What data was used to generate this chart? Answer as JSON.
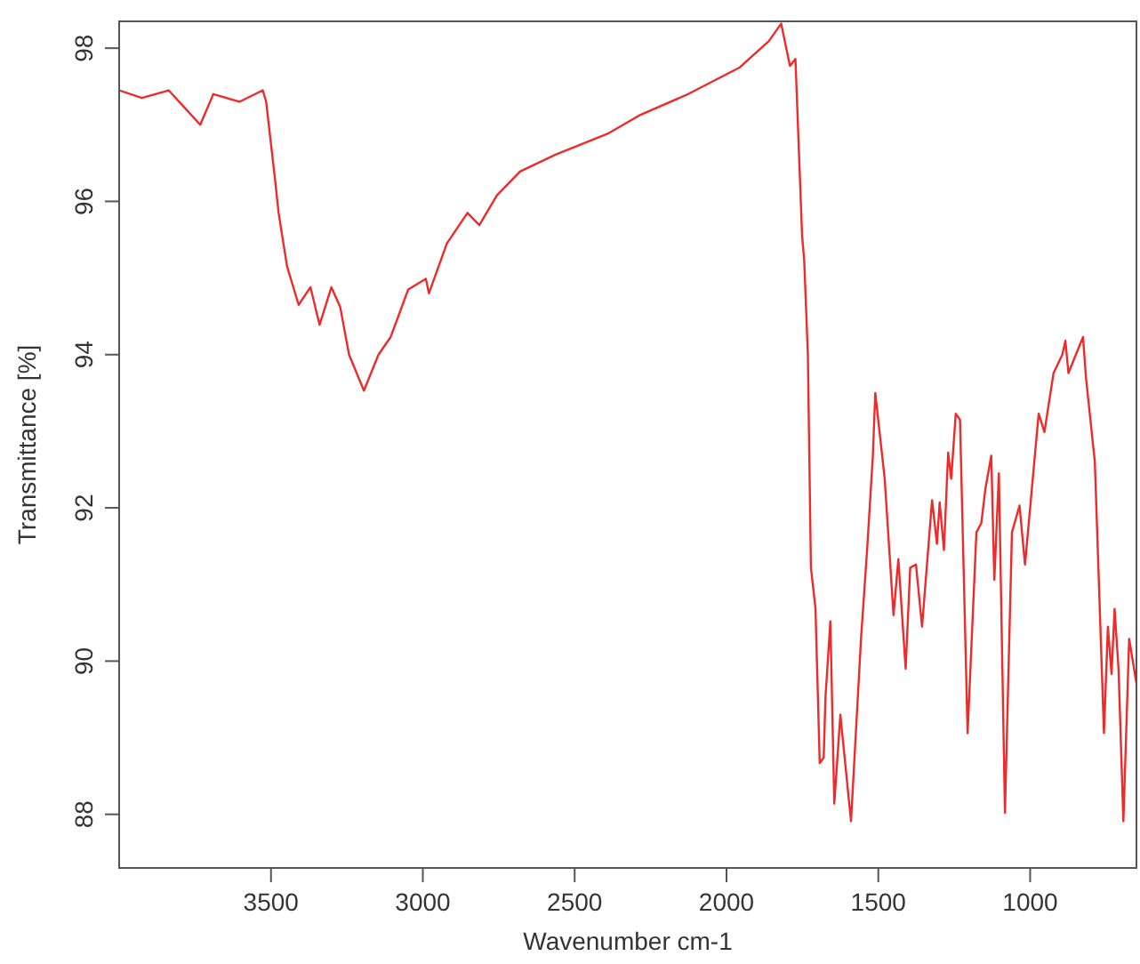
{
  "chart_data": {
    "type": "line",
    "xlabel": "Wavenumber cm-1",
    "ylabel": "Transmittance [%]",
    "xlim": [
      4000,
      650
    ],
    "ylim": [
      87.3,
      98.35
    ],
    "xticks": [
      3500,
      3000,
      2500,
      2000,
      1500,
      1000
    ],
    "yticks": [
      88,
      90,
      92,
      94,
      96,
      98
    ],
    "grid": false,
    "marker": "none",
    "line_style": "solid",
    "series": [
      {
        "color": "#ee2a2a",
        "x": [
          4000,
          3925,
          3837,
          3779,
          3733,
          3690,
          3604,
          3527,
          3516,
          3487,
          3475,
          3447,
          3409,
          3370,
          3340,
          3301,
          3272,
          3243,
          3194,
          3146,
          3106,
          3048,
          2990,
          2980,
          2921,
          2853,
          2814,
          2756,
          2680,
          2563,
          2388,
          2288,
          2132,
          1956,
          1861,
          1820,
          1791,
          1773,
          1751,
          1744,
          1732,
          1722,
          1707,
          1693,
          1680,
          1674,
          1658,
          1645,
          1625,
          1590,
          1557,
          1537,
          1518,
          1510,
          1479,
          1450,
          1434,
          1410,
          1395,
          1376,
          1356,
          1323,
          1307,
          1298,
          1284,
          1270,
          1260,
          1245,
          1231,
          1206,
          1177,
          1161,
          1147,
          1128,
          1118,
          1103,
          1083,
          1060,
          1035,
          1017,
          972,
          953,
          923,
          894,
          884,
          874,
          826,
          816,
          787,
          757,
          744,
          732,
          722,
          709,
          693,
          674,
          650
        ],
        "values": [
          97.45,
          97.35,
          97.45,
          97.2,
          97.0,
          97.4,
          97.3,
          97.45,
          97.3,
          96.3,
          95.85,
          95.15,
          94.65,
          94.88,
          94.39,
          94.88,
          94.62,
          94.0,
          93.53,
          94.0,
          94.23,
          94.85,
          94.99,
          94.8,
          95.45,
          95.85,
          95.69,
          96.08,
          96.39,
          96.61,
          96.89,
          97.12,
          97.39,
          97.75,
          98.09,
          98.32,
          97.77,
          97.86,
          95.55,
          95.22,
          94.0,
          91.22,
          90.69,
          88.67,
          88.74,
          89.53,
          90.52,
          88.14,
          89.3,
          87.91,
          90.29,
          91.45,
          92.68,
          93.5,
          92.38,
          90.6,
          91.33,
          89.9,
          91.22,
          91.26,
          90.45,
          92.1,
          91.53,
          92.07,
          91.45,
          92.72,
          92.38,
          93.23,
          93.15,
          89.06,
          91.68,
          91.8,
          92.26,
          92.68,
          91.06,
          92.45,
          88.02,
          91.68,
          92.03,
          91.26,
          93.23,
          92.99,
          93.76,
          94.0,
          94.18,
          93.76,
          94.23,
          93.69,
          92.6,
          89.06,
          90.45,
          89.83,
          90.68,
          89.9,
          87.91,
          90.29,
          89.71
        ]
      }
    ]
  }
}
